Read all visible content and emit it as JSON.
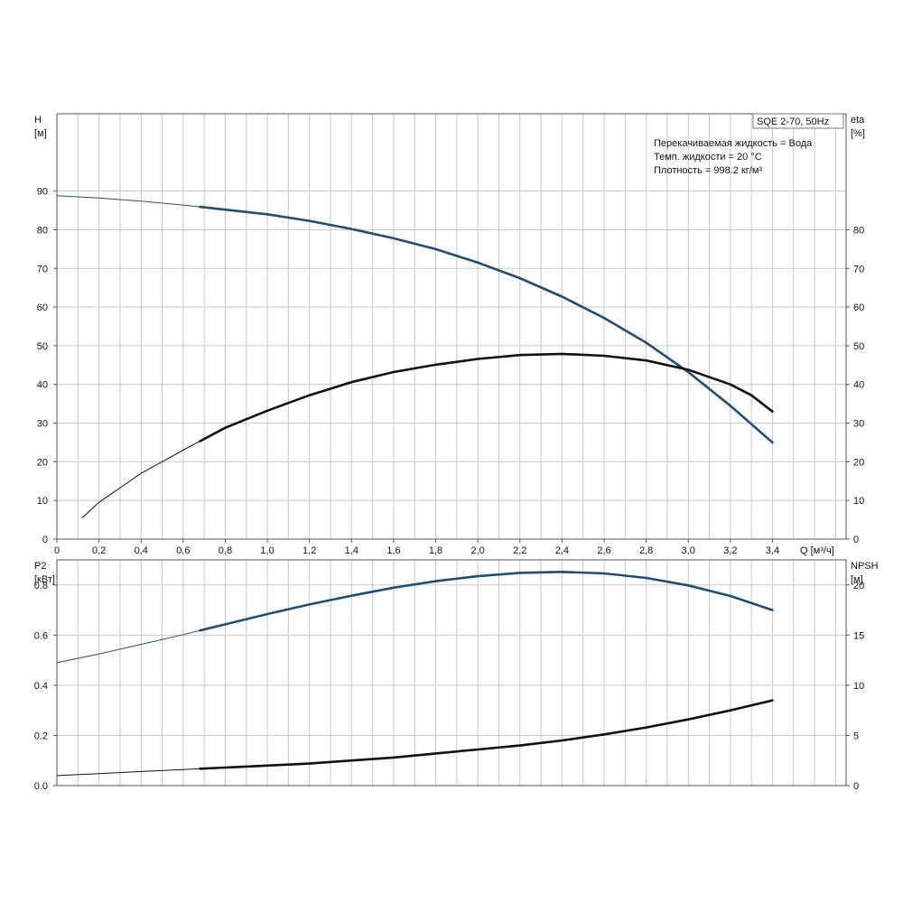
{
  "pump_title": "SQE 2-70, 50Hz",
  "info_lines": [
    "Перекачиваемая жидкость = Вода",
    "Темп. жидкости = 20 °C",
    "Плотность = 998.2 кг/м³"
  ],
  "colors": {
    "head": "#1f4e79",
    "eta": "#111111",
    "p2": "#1f4e79",
    "npsh": "#111111",
    "grid": "#c8c8c8"
  },
  "chart_data": [
    {
      "type": "line",
      "x_label": "Q [м³/ч]",
      "x_ticks": [
        "0",
        "0,2",
        "0,4",
        "0,6",
        "0,8",
        "1,0",
        "1,2",
        "1,4",
        "1,6",
        "1,8",
        "2,0",
        "2,2",
        "2,4",
        "2,6",
        "2,8",
        "3,0",
        "3,2",
        "3,4"
      ],
      "xlim": [
        0,
        3.75
      ],
      "left_axis": {
        "label": [
          "H",
          "[м]"
        ],
        "ylim": [
          0,
          110
        ],
        "ticks": [
          0,
          10,
          20,
          30,
          40,
          50,
          60,
          70,
          80,
          90
        ]
      },
      "right_axis": {
        "label": [
          "eta",
          "[%]"
        ],
        "ylim": [
          0,
          110
        ],
        "ticks": [
          0,
          10,
          20,
          30,
          40,
          50,
          60,
          70,
          80
        ]
      },
      "grid": true,
      "series": [
        {
          "axis": "left",
          "color": "head",
          "thin_until": 0.68,
          "x": [
            0,
            0.2,
            0.4,
            0.6,
            0.8,
            1.0,
            1.2,
            1.4,
            1.6,
            1.8,
            2.0,
            2.2,
            2.4,
            2.6,
            2.8,
            3.0,
            3.2,
            3.4
          ],
          "y": [
            88.8,
            88.2,
            87.4,
            86.4,
            85.2,
            84.0,
            82.3,
            80.2,
            77.8,
            75.0,
            71.5,
            67.5,
            62.7,
            57.2,
            50.8,
            43.2,
            34.5,
            25.0
          ]
        },
        {
          "axis": "right",
          "color": "eta",
          "thin_until": 0.68,
          "x": [
            0.12,
            0.2,
            0.4,
            0.6,
            0.8,
            1.0,
            1.2,
            1.4,
            1.6,
            1.8,
            2.0,
            2.2,
            2.4,
            2.6,
            2.8,
            3.0,
            3.2,
            3.3,
            3.4
          ],
          "y": [
            5.5,
            9.5,
            17.0,
            23.0,
            28.8,
            33.2,
            37.2,
            40.6,
            43.2,
            45.1,
            46.6,
            47.6,
            47.9,
            47.4,
            46.2,
            43.8,
            40.0,
            37.2,
            33.0
          ]
        }
      ]
    },
    {
      "type": "line",
      "xlim": [
        0,
        3.75
      ],
      "left_axis": {
        "label": [
          "P2",
          "[кВт]"
        ],
        "ylim": [
          0,
          0.9
        ],
        "ticks": [
          "0.0",
          "0.2",
          "0.4",
          "0.6",
          "0.8"
        ]
      },
      "right_axis": {
        "label": [
          "NPSH",
          "[м]"
        ],
        "ylim": [
          0,
          22.5
        ],
        "ticks": [
          0,
          5,
          10,
          15,
          20
        ]
      },
      "grid": true,
      "series": [
        {
          "axis": "left",
          "color": "p2",
          "thin_until": 0.68,
          "x": [
            0,
            0.2,
            0.4,
            0.6,
            0.8,
            1.0,
            1.2,
            1.4,
            1.6,
            1.8,
            2.0,
            2.2,
            2.4,
            2.6,
            2.8,
            3.0,
            3.2,
            3.4
          ],
          "y": [
            0.49,
            0.525,
            0.563,
            0.602,
            0.643,
            0.684,
            0.722,
            0.757,
            0.789,
            0.815,
            0.835,
            0.848,
            0.852,
            0.846,
            0.828,
            0.798,
            0.756,
            0.7
          ]
        },
        {
          "axis": "right",
          "color": "npsh",
          "thin_until": 0.68,
          "x": [
            0,
            0.2,
            0.4,
            0.6,
            0.8,
            1.0,
            1.2,
            1.4,
            1.6,
            1.8,
            2.0,
            2.2,
            2.4,
            2.6,
            2.8,
            3.0,
            3.2,
            3.4
          ],
          "y": [
            1.0,
            1.2,
            1.4,
            1.6,
            1.8,
            2.0,
            2.2,
            2.5,
            2.8,
            3.2,
            3.6,
            4.0,
            4.5,
            5.1,
            5.8,
            6.6,
            7.5,
            8.5
          ]
        }
      ]
    }
  ]
}
